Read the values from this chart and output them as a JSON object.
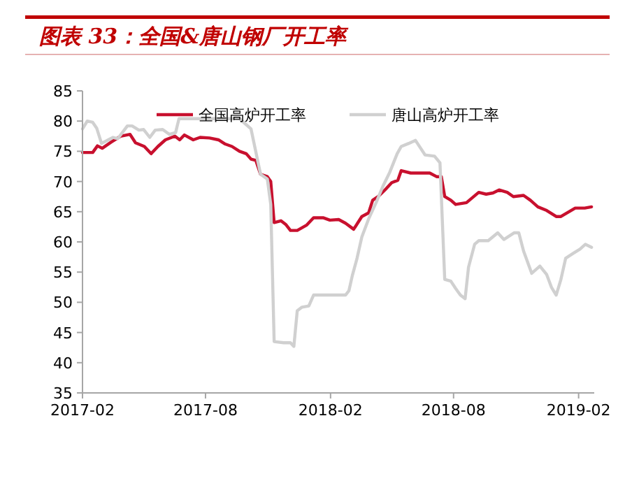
{
  "chart_data": {
    "type": "line",
    "title": "图表 33：全国&唐山钢厂开工率",
    "xlim": [
      "2017-02-01",
      "2019-02-24"
    ],
    "xticks": [
      "2017-02",
      "2017-08",
      "2018-02",
      "2018-08",
      "2019-02"
    ],
    "ylim": [
      35,
      85
    ],
    "yticks": [
      35,
      40,
      45,
      50,
      55,
      60,
      65,
      70,
      75,
      80,
      85
    ],
    "legend": "top",
    "grid": false,
    "marker": "none",
    "line_style": "solid",
    "series": [
      {
        "name": "全国高炉开工率",
        "color": "#c8102e",
        "x": [
          "2017-02-01",
          "2017-02-16",
          "2017-02-23",
          "2017-03-02",
          "2017-03-15",
          "2017-03-29",
          "2017-04-12",
          "2017-04-20",
          "2017-05-03",
          "2017-05-13",
          "2017-05-23",
          "2017-06-03",
          "2017-06-17",
          "2017-06-24",
          "2017-07-01",
          "2017-07-14",
          "2017-07-24",
          "2017-08-07",
          "2017-08-20",
          "2017-08-30",
          "2017-09-09",
          "2017-09-20",
          "2017-09-30",
          "2017-10-07",
          "2017-10-14",
          "2017-10-21",
          "2017-10-31",
          "2017-11-05",
          "2017-11-10",
          "2017-11-20",
          "2017-11-27",
          "2017-12-04",
          "2017-12-14",
          "2017-12-28",
          "2018-01-07",
          "2018-01-21",
          "2018-01-31",
          "2018-02-13",
          "2018-02-23",
          "2018-03-07",
          "2018-03-19",
          "2018-03-29",
          "2018-04-04",
          "2018-04-12",
          "2018-04-22",
          "2018-05-02",
          "2018-05-11",
          "2018-05-16",
          "2018-05-30",
          "2018-06-13",
          "2018-06-27",
          "2018-07-07",
          "2018-07-14",
          "2018-07-19",
          "2018-07-28",
          "2018-08-04",
          "2018-08-20",
          "2018-09-07",
          "2018-09-18",
          "2018-09-28",
          "2018-10-07",
          "2018-10-19",
          "2018-10-28",
          "2018-11-12",
          "2018-11-22",
          "2018-12-03",
          "2018-12-16",
          "2018-12-30",
          "2019-01-06",
          "2019-01-27",
          "2019-02-10",
          "2019-02-20"
        ],
        "values": [
          74.8,
          74.8,
          75.9,
          75.5,
          76.5,
          77.5,
          77.8,
          76.4,
          75.8,
          74.6,
          75.8,
          76.9,
          77.5,
          76.9,
          77.7,
          76.9,
          77.3,
          77.2,
          76.9,
          76.2,
          75.8,
          75.0,
          74.6,
          73.7,
          73.5,
          71.2,
          70.8,
          70.0,
          63.2,
          63.5,
          62.9,
          61.9,
          61.9,
          62.8,
          64.0,
          64.0,
          63.6,
          63.7,
          63.1,
          62.1,
          64.2,
          64.8,
          66.9,
          67.5,
          68.6,
          69.8,
          70.2,
          71.8,
          71.4,
          71.4,
          71.4,
          70.8,
          70.8,
          67.5,
          66.9,
          66.2,
          66.5,
          68.2,
          67.9,
          68.1,
          68.6,
          68.2,
          67.5,
          67.7,
          66.9,
          65.8,
          65.2,
          64.2,
          64.2,
          65.6,
          65.6,
          65.8
        ]
      },
      {
        "name": "唐山高炉开工率",
        "color": "#d0d0d0",
        "x": [
          "2017-02-01",
          "2017-02-08",
          "2017-02-16",
          "2017-02-22",
          "2017-03-01",
          "2017-03-11",
          "2017-03-18",
          "2017-03-25",
          "2017-04-08",
          "2017-04-15",
          "2017-04-25",
          "2017-05-02",
          "2017-05-11",
          "2017-05-19",
          "2017-05-30",
          "2017-06-09",
          "2017-06-18",
          "2017-06-23",
          "2017-07-17",
          "2017-08-20",
          "2017-09-20",
          "2017-10-07",
          "2017-10-21",
          "2017-10-31",
          "2017-11-05",
          "2017-11-10",
          "2017-11-24",
          "2017-12-04",
          "2017-12-09",
          "2017-12-14",
          "2017-12-21",
          "2017-12-31",
          "2018-01-07",
          "2018-02-23",
          "2018-02-28",
          "2018-03-05",
          "2018-03-12",
          "2018-03-19",
          "2018-03-29",
          "2018-04-09",
          "2018-04-19",
          "2018-04-29",
          "2018-05-10",
          "2018-05-16",
          "2018-05-27",
          "2018-06-06",
          "2018-06-20",
          "2018-07-04",
          "2018-07-12",
          "2018-07-19",
          "2018-07-28",
          "2018-08-04",
          "2018-08-11",
          "2018-08-18",
          "2018-08-23",
          "2018-09-01",
          "2018-09-07",
          "2018-09-21",
          "2018-10-05",
          "2018-10-14",
          "2018-10-29",
          "2018-11-05",
          "2018-11-12",
          "2018-11-24",
          "2018-12-06",
          "2018-12-16",
          "2018-12-23",
          "2018-12-30",
          "2019-01-06",
          "2019-01-13",
          "2019-01-24",
          "2019-02-03",
          "2019-02-11",
          "2019-02-20"
        ],
        "values": [
          78.7,
          80.0,
          79.8,
          78.8,
          76.3,
          76.9,
          77.3,
          77.1,
          79.2,
          79.2,
          78.5,
          78.6,
          77.3,
          78.5,
          78.6,
          77.8,
          78.1,
          80.4,
          80.4,
          80.4,
          80.4,
          78.7,
          71.2,
          70.4,
          66.2,
          43.5,
          43.3,
          43.3,
          42.7,
          48.6,
          49.2,
          49.4,
          51.2,
          51.2,
          51.9,
          54.4,
          57.3,
          60.8,
          63.8,
          66.5,
          69.2,
          71.5,
          74.6,
          75.8,
          76.3,
          76.8,
          74.4,
          74.2,
          73.1,
          53.8,
          53.5,
          52.3,
          51.2,
          50.6,
          55.8,
          59.6,
          60.2,
          60.2,
          61.5,
          60.4,
          61.5,
          61.5,
          58.5,
          54.8,
          56.0,
          54.6,
          52.5,
          51.2,
          53.8,
          57.3,
          58.1,
          58.8,
          59.6,
          59.1
        ]
      }
    ]
  }
}
